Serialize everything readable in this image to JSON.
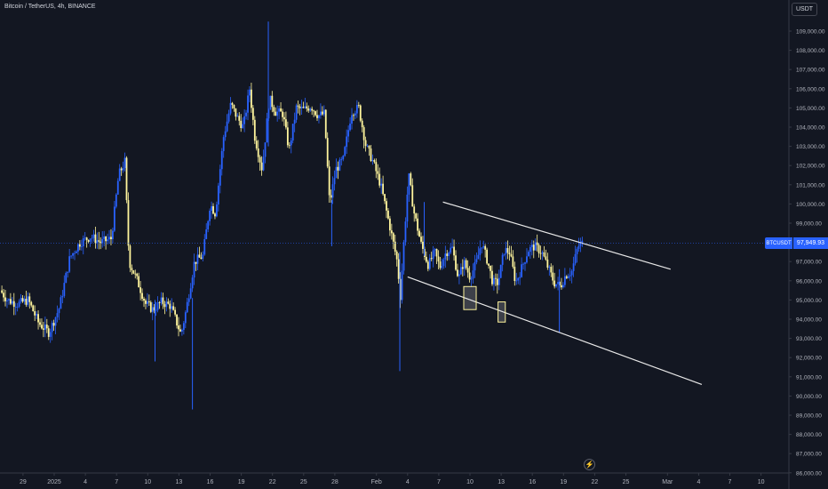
{
  "header": {
    "title": "Bitcoin / TetherUS, 4h, BINANCE"
  },
  "toolbar": {
    "currency_label": "USDT"
  },
  "current_price": {
    "symbol": "BTCUSDT",
    "value": 97949.93,
    "label": "97,949.93"
  },
  "colors": {
    "background": "#131722",
    "axis_border": "#363a45",
    "up_candle": "#2962ff",
    "down_candle": "#fff59d",
    "trendline": "#e8e8e8",
    "price_line": "#2962ff",
    "highlight_box": "#fff59d"
  },
  "chart_data": {
    "type": "candlestick",
    "ylim": [
      85600,
      110600
    ],
    "y_ticks": [
      86000,
      87000,
      88000,
      89000,
      90000,
      91000,
      92000,
      93000,
      94000,
      95000,
      96000,
      97000,
      98000,
      99000,
      100000,
      101000,
      102000,
      103000,
      104000,
      105000,
      106000,
      107000,
      108000,
      109000
    ],
    "y_tick_labels": [
      "86,000.00",
      "87,000.00",
      "88,000.00",
      "89,000.00",
      "90,000.00",
      "91,000.00",
      "92,000.00",
      "93,000.00",
      "94,000.00",
      "95,000.00",
      "96,000.00",
      "97,000.00",
      "98,000.00",
      "99,000.00",
      "100,000.00",
      "101,000.00",
      "102,000.00",
      "103,000.00",
      "104,000.00",
      "105,000.00",
      "106,000.00",
      "107,000.00",
      "108,000.00",
      "109,000.00"
    ],
    "x_ticks": [
      "29",
      "2025",
      "4",
      "7",
      "10",
      "13",
      "16",
      "19",
      "22",
      "25",
      "28",
      "Feb",
      "4",
      "7",
      "10",
      "13",
      "16",
      "19",
      "22",
      "25",
      "Mar",
      "4",
      "7",
      "10"
    ],
    "x_tick_days": [
      -3,
      0,
      3,
      6,
      9,
      12,
      15,
      18,
      21,
      24,
      27,
      31,
      34,
      37,
      40,
      43,
      46,
      49,
      52,
      55,
      59,
      62,
      65,
      68
    ],
    "x_unit": "days since 2025-01-01",
    "path_keypoints": [
      [
        -5.2,
        95500
      ],
      [
        -4.5,
        95000
      ],
      [
        -3.5,
        94800
      ],
      [
        -2.5,
        95000
      ],
      [
        -1.5,
        93800
      ],
      [
        -0.5,
        93300
      ],
      [
        0.5,
        94600
      ],
      [
        1.5,
        97200
      ],
      [
        2.5,
        98000
      ],
      [
        3.5,
        98300
      ],
      [
        4.5,
        98000
      ],
      [
        5.5,
        98200
      ],
      [
        6.2,
        101500
      ],
      [
        6.8,
        102200
      ],
      [
        7.2,
        97000
      ],
      [
        8.0,
        96000
      ],
      [
        8.8,
        94800
      ],
      [
        9.5,
        94500
      ],
      [
        10.3,
        94900
      ],
      [
        11.2,
        94700
      ],
      [
        12.2,
        93200
      ],
      [
        12.7,
        94500
      ],
      [
        13.5,
        97000
      ],
      [
        14.3,
        97300
      ],
      [
        15.0,
        100000
      ],
      [
        15.5,
        99500
      ],
      [
        16.3,
        103500
      ],
      [
        17.0,
        105200
      ],
      [
        17.6,
        104500
      ],
      [
        18.2,
        104000
      ],
      [
        18.8,
        106000
      ],
      [
        19.3,
        103500
      ],
      [
        20.0,
        101800
      ],
      [
        20.7,
        105500
      ],
      [
        21.3,
        104800
      ],
      [
        22.0,
        104700
      ],
      [
        22.6,
        102800
      ],
      [
        23.3,
        105000
      ],
      [
        24.0,
        104900
      ],
      [
        24.7,
        105100
      ],
      [
        25.4,
        104600
      ],
      [
        26.0,
        104700
      ],
      [
        26.5,
        100000
      ],
      [
        27.1,
        101800
      ],
      [
        27.8,
        102300
      ],
      [
        28.6,
        104800
      ],
      [
        29.3,
        105000
      ],
      [
        30.0,
        103000
      ],
      [
        30.6,
        102300
      ],
      [
        31.4,
        101000
      ],
      [
        32.3,
        98800
      ],
      [
        33.0,
        97000
      ],
      [
        33.3,
        95200
      ],
      [
        33.7,
        98500
      ],
      [
        34.1,
        101500
      ],
      [
        34.6,
        99600
      ],
      [
        35.3,
        97900
      ],
      [
        36.0,
        96800
      ],
      [
        36.6,
        97500
      ],
      [
        37.1,
        96700
      ],
      [
        37.7,
        97500
      ],
      [
        38.3,
        97700
      ],
      [
        38.9,
        96100
      ],
      [
        39.4,
        97000
      ],
      [
        40.0,
        96200
      ],
      [
        40.6,
        96900
      ],
      [
        41.1,
        98000
      ],
      [
        41.7,
        97000
      ],
      [
        42.2,
        95900
      ],
      [
        42.7,
        95900
      ],
      [
        43.3,
        97600
      ],
      [
        43.8,
        97500
      ],
      [
        44.4,
        95900
      ],
      [
        45.0,
        96700
      ],
      [
        45.6,
        97600
      ],
      [
        46.2,
        97800
      ],
      [
        46.9,
        97500
      ],
      [
        47.5,
        96700
      ],
      [
        48.1,
        95900
      ],
      [
        48.7,
        95700
      ],
      [
        49.2,
        96300
      ],
      [
        49.8,
        96500
      ],
      [
        50.4,
        97800
      ],
      [
        50.8,
        97950
      ]
    ],
    "outlier_wicks": [
      [
        20.6,
        109500,
        103000
      ],
      [
        26.7,
        100200,
        97800
      ],
      [
        33.25,
        97500,
        91300
      ],
      [
        13.3,
        95100,
        89300
      ],
      [
        9.7,
        95000,
        91800
      ],
      [
        35.6,
        100100,
        97300
      ],
      [
        48.6,
        96600,
        93300
      ]
    ],
    "trendlines": [
      {
        "x1": 37.4,
        "y1": 100100,
        "x2": 59.3,
        "y2": 96600
      },
      {
        "x1": 34.0,
        "y1": 96200,
        "x2": 62.3,
        "y2": 90600
      }
    ],
    "highlight_boxes": [
      {
        "x1": 39.4,
        "x2": 40.6,
        "y1": 94500,
        "y2": 95700
      },
      {
        "x1": 42.7,
        "x2": 43.4,
        "y1": 93850,
        "y2": 94900
      }
    ],
    "last_price": 97949.93
  }
}
